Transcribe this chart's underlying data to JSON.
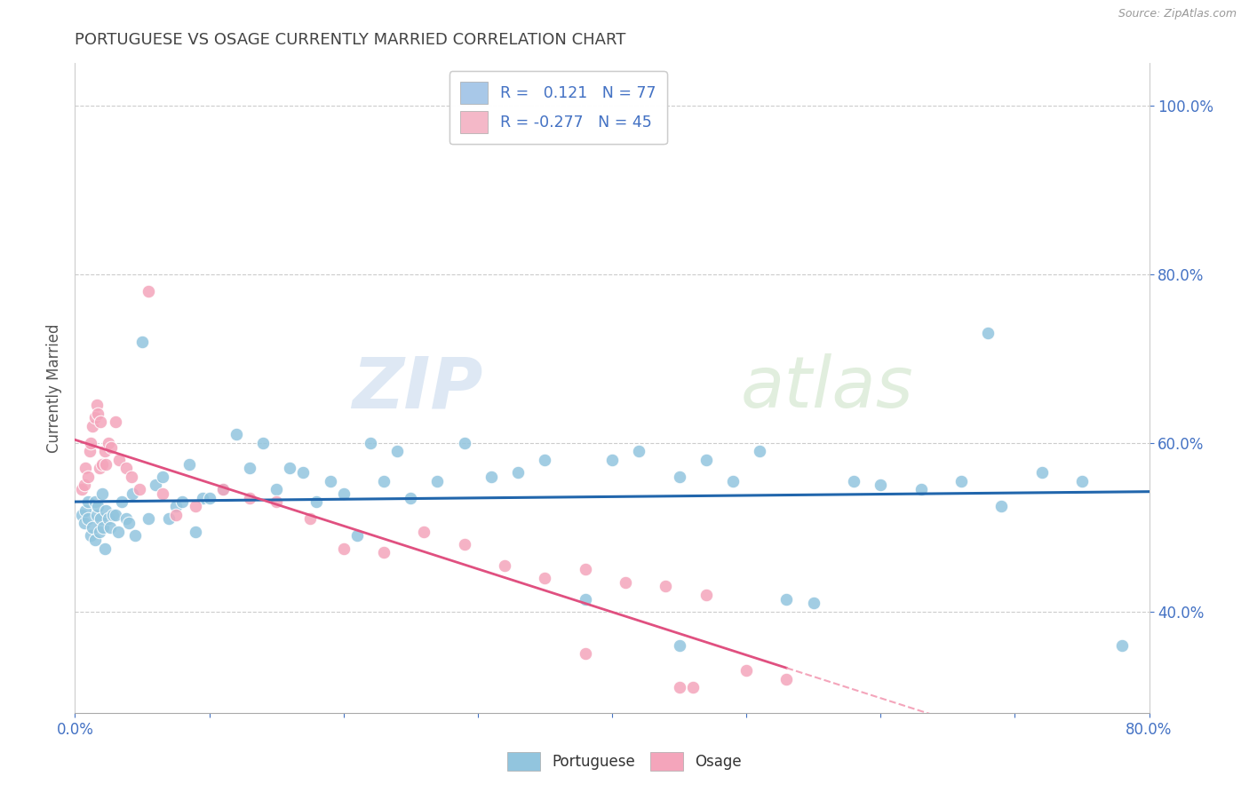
{
  "title": "PORTUGUESE VS OSAGE CURRENTLY MARRIED CORRELATION CHART",
  "source_text": "Source: ZipAtlas.com",
  "ylabel": "Currently Married",
  "legend_bottom": [
    "Portuguese",
    "Osage"
  ],
  "blue_R": 0.121,
  "blue_N": 77,
  "pink_R": -0.277,
  "pink_N": 45,
  "watermark_zip": "ZIP",
  "watermark_atlas": "atlas",
  "blue_color": "#92c5de",
  "pink_color": "#f4a5bb",
  "blue_line_color": "#2166ac",
  "pink_line_solid_color": "#e05080",
  "pink_line_dash_color": "#f4a5bb",
  "title_color": "#444444",
  "axis_label_color": "#4472c4",
  "legend_box_blue": "#a8c8e8",
  "legend_box_pink": "#f4b8c8",
  "x_min": 0.0,
  "x_max": 0.8,
  "y_min": 0.28,
  "y_max": 1.05,
  "y_ticks": [
    0.4,
    0.6,
    0.8,
    1.0
  ],
  "blue_scatter_x": [
    0.005,
    0.007,
    0.008,
    0.01,
    0.01,
    0.012,
    0.013,
    0.015,
    0.015,
    0.016,
    0.017,
    0.018,
    0.019,
    0.02,
    0.021,
    0.022,
    0.023,
    0.025,
    0.026,
    0.028,
    0.03,
    0.032,
    0.035,
    0.038,
    0.04,
    0.043,
    0.045,
    0.05,
    0.055,
    0.06,
    0.065,
    0.07,
    0.075,
    0.08,
    0.085,
    0.09,
    0.095,
    0.1,
    0.11,
    0.12,
    0.13,
    0.14,
    0.15,
    0.16,
    0.17,
    0.18,
    0.19,
    0.2,
    0.21,
    0.22,
    0.23,
    0.24,
    0.25,
    0.27,
    0.29,
    0.31,
    0.33,
    0.35,
    0.38,
    0.4,
    0.42,
    0.45,
    0.47,
    0.49,
    0.51,
    0.53,
    0.55,
    0.58,
    0.6,
    0.63,
    0.66,
    0.69,
    0.72,
    0.75,
    0.78,
    0.68,
    0.45
  ],
  "blue_scatter_y": [
    0.515,
    0.505,
    0.52,
    0.53,
    0.51,
    0.49,
    0.5,
    0.485,
    0.53,
    0.515,
    0.525,
    0.495,
    0.51,
    0.54,
    0.5,
    0.475,
    0.52,
    0.51,
    0.5,
    0.515,
    0.515,
    0.495,
    0.53,
    0.51,
    0.505,
    0.54,
    0.49,
    0.72,
    0.51,
    0.55,
    0.56,
    0.51,
    0.525,
    0.53,
    0.575,
    0.495,
    0.535,
    0.535,
    0.545,
    0.61,
    0.57,
    0.6,
    0.545,
    0.57,
    0.565,
    0.53,
    0.555,
    0.54,
    0.49,
    0.6,
    0.555,
    0.59,
    0.535,
    0.555,
    0.6,
    0.56,
    0.565,
    0.58,
    0.415,
    0.58,
    0.59,
    0.56,
    0.58,
    0.555,
    0.59,
    0.415,
    0.41,
    0.555,
    0.55,
    0.545,
    0.555,
    0.525,
    0.565,
    0.555,
    0.36,
    0.73,
    0.36
  ],
  "pink_scatter_x": [
    0.005,
    0.007,
    0.008,
    0.01,
    0.011,
    0.012,
    0.013,
    0.015,
    0.016,
    0.017,
    0.018,
    0.019,
    0.02,
    0.022,
    0.023,
    0.025,
    0.027,
    0.03,
    0.033,
    0.038,
    0.042,
    0.048,
    0.055,
    0.065,
    0.075,
    0.09,
    0.11,
    0.13,
    0.15,
    0.175,
    0.2,
    0.23,
    0.26,
    0.29,
    0.32,
    0.35,
    0.38,
    0.41,
    0.44,
    0.47,
    0.5,
    0.53,
    0.46,
    0.38,
    0.45
  ],
  "pink_scatter_y": [
    0.545,
    0.55,
    0.57,
    0.56,
    0.59,
    0.6,
    0.62,
    0.63,
    0.645,
    0.635,
    0.57,
    0.625,
    0.575,
    0.59,
    0.575,
    0.6,
    0.595,
    0.625,
    0.58,
    0.57,
    0.56,
    0.545,
    0.78,
    0.54,
    0.515,
    0.525,
    0.545,
    0.535,
    0.53,
    0.51,
    0.475,
    0.47,
    0.495,
    0.48,
    0.455,
    0.44,
    0.45,
    0.435,
    0.43,
    0.42,
    0.33,
    0.32,
    0.31,
    0.35,
    0.31
  ]
}
